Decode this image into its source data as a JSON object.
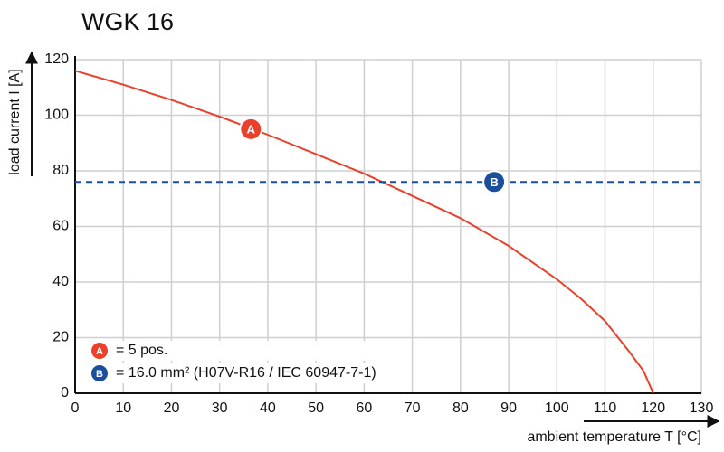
{
  "chart_data": {
    "type": "line",
    "title": "WGK 16",
    "x_label": "ambient temperature T [°C]",
    "y_label": "load current I [A]",
    "x": [
      0,
      10,
      20,
      30,
      40,
      50,
      60,
      70,
      80,
      90,
      100,
      105,
      110,
      115,
      118,
      120,
      130
    ],
    "series": [
      {
        "name": "A",
        "description": "= 5 pos.",
        "color": "#e8412c",
        "dash": false,
        "values": [
          116,
          111,
          105.5,
          99.5,
          93,
          86,
          79,
          71,
          63,
          53,
          41,
          34,
          26,
          15,
          8,
          0,
          null
        ],
        "badge": [
          36.5,
          95
        ]
      },
      {
        "name": "B",
        "description": "= 16.0 mm² (H07V-R16 / IEC 60947-7-1)",
        "color": "#1a4f9c",
        "dash": true,
        "values": [
          76,
          76,
          76,
          76,
          76,
          76,
          76,
          76,
          76,
          76,
          76,
          76,
          76,
          76,
          76,
          76,
          76
        ],
        "badge": [
          87,
          76
        ]
      }
    ],
    "xlim": [
      0,
      130
    ],
    "ylim": [
      0,
      120
    ],
    "xticks": [
      0,
      10,
      20,
      30,
      40,
      50,
      60,
      70,
      80,
      90,
      100,
      110,
      120,
      130
    ],
    "yticks": [
      0,
      20,
      40,
      60,
      80,
      100,
      120
    ],
    "grid": true
  }
}
